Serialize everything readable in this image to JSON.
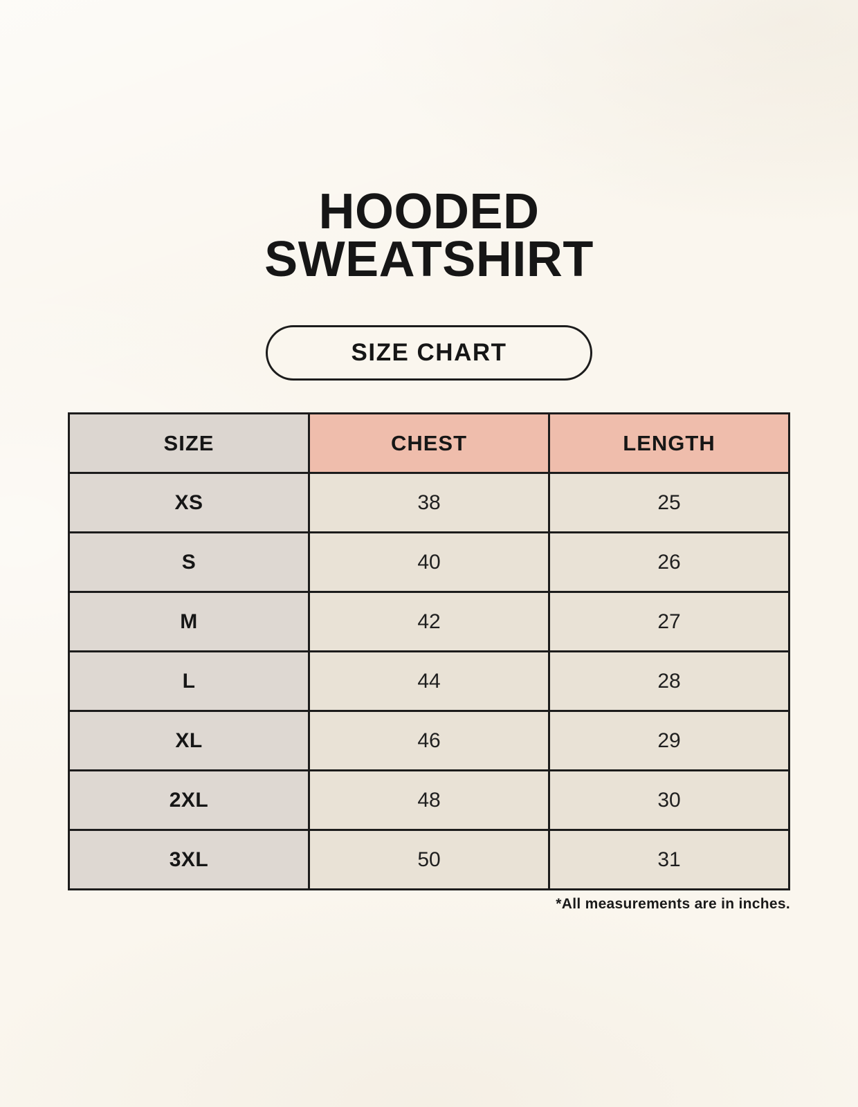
{
  "header": {
    "title_line1": "HOODED",
    "title_line2": "SWEATSHIRT",
    "size_chart_badge": "SIZE CHART"
  },
  "chart_data": {
    "type": "table",
    "title": "HOODED SWEATSHIRT SIZE CHART",
    "columns": [
      "SIZE",
      "CHEST",
      "LENGTH"
    ],
    "rows": [
      [
        "XS",
        "38",
        "25"
      ],
      [
        "S",
        "40",
        "26"
      ],
      [
        "M",
        "42",
        "27"
      ],
      [
        "L",
        "44",
        "28"
      ],
      [
        "XL",
        "46",
        "29"
      ],
      [
        "2XL",
        "48",
        "30"
      ],
      [
        "3XL",
        "50",
        "31"
      ]
    ],
    "units_note": "*All measurements are in inches.",
    "layout": {
      "header_size_bg": "#dcd6d0",
      "header_measure_bg": "#efbdac",
      "size_column_bg": "#ded8d2",
      "value_cell_bg": "#e9e2d6",
      "border_color": "#1c1c1c",
      "page_background": "#faf6ee"
    }
  }
}
